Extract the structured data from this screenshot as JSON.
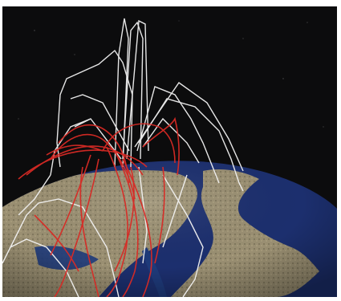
{
  "image": {
    "subject": "",
    "colors": {
      "background_space": "#0c0c0d",
      "ocean": "#1c2f6e",
      "ocean_deep": "#132456",
      "land": "#9a8f72",
      "land_dark": "#6f6a52",
      "paths_white": "#f2f2f2",
      "paths_red": "#d82a25"
    }
  }
}
